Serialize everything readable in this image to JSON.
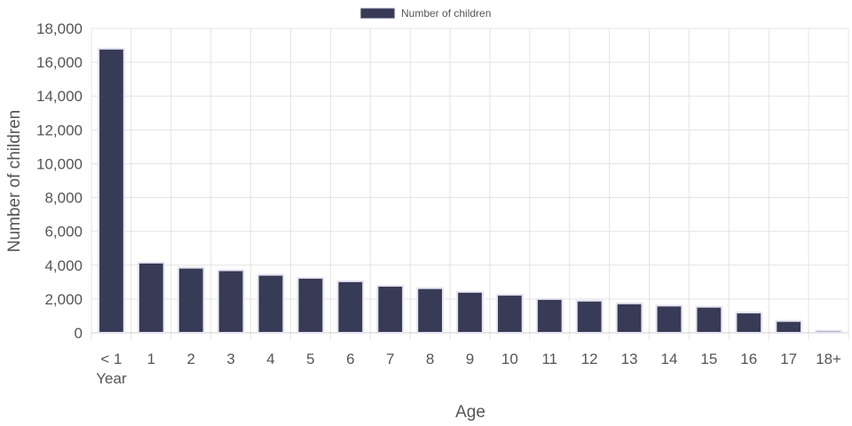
{
  "chart_data": {
    "type": "bar",
    "categories": [
      "< 1\nYear",
      "1",
      "2",
      "3",
      "4",
      "5",
      "6",
      "7",
      "8",
      "9",
      "10",
      "11",
      "12",
      "13",
      "14",
      "15",
      "16",
      "17",
      "18+"
    ],
    "series": [
      {
        "name": "Number of children",
        "values": [
          16800,
          4150,
          3850,
          3700,
          3430,
          3250,
          3050,
          2780,
          2640,
          2420,
          2250,
          2000,
          1900,
          1740,
          1610,
          1540,
          1200,
          700,
          120
        ],
        "color": "#373b56",
        "border_color": "#e6e3f0"
      }
    ],
    "xlabel": "Age",
    "ylabel": "Number of children",
    "ylim": [
      0,
      18000
    ],
    "y_ticks": [
      0,
      2000,
      4000,
      6000,
      8000,
      10000,
      12000,
      14000,
      16000,
      18000
    ],
    "grid": true,
    "legend_position": "top-center"
  }
}
